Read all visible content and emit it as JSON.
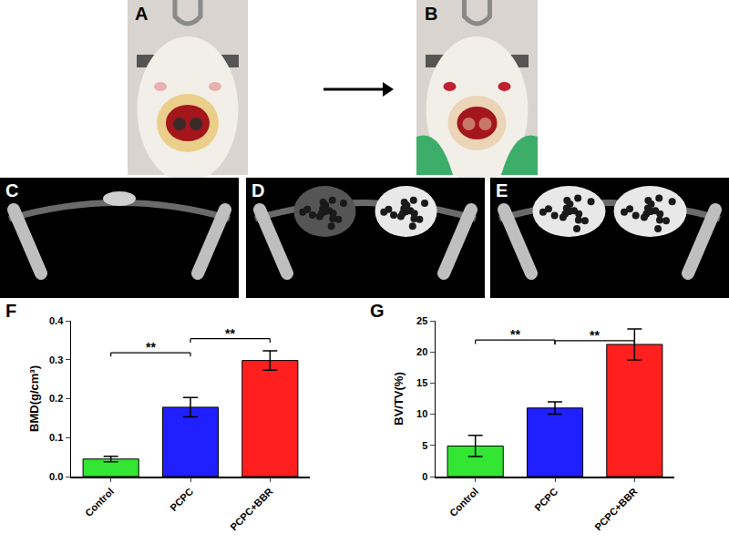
{
  "image_panels": [
    "A",
    "B",
    "C",
    "D",
    "E"
  ],
  "chart_data": [
    {
      "type": "bar",
      "panel": "F",
      "y_label": "BMD(g/cm³)",
      "categories": [
        "Control",
        "PCPC",
        "PCPC+BBR"
      ],
      "values": [
        0.045,
        0.178,
        0.298
      ],
      "errors": [
        0.007,
        0.025,
        0.025
      ],
      "colors": [
        "#33e633",
        "#1f1fff",
        "#ff1f1f"
      ],
      "ylim": [
        0,
        0.4
      ],
      "yticks": [
        {
          "value": 0,
          "label": "0.0"
        },
        0.1,
        0.2,
        0.3,
        0.4
      ],
      "significance": [
        {
          "from": "Control",
          "to": "PCPC",
          "y": 0.318,
          "text": "**"
        },
        {
          "from": "PCPC",
          "to": "PCPC+BBR",
          "y": 0.354,
          "text": "**"
        }
      ]
    },
    {
      "type": "bar",
      "panel": "G",
      "y_label": "BV/TV(%)",
      "categories": [
        "Control",
        "PCPC",
        "PCPC+BBR"
      ],
      "values": [
        4.9,
        11.0,
        21.2
      ],
      "errors": [
        1.7,
        1.0,
        2.5
      ],
      "colors": [
        "#33e633",
        "#1f1fff",
        "#ff1f1f"
      ],
      "ylim": [
        0,
        25
      ],
      "yticks": [
        0,
        5,
        10,
        15,
        20,
        25
      ],
      "significance": [
        {
          "from": "Control",
          "to": "PCPC",
          "y": 21.9,
          "text": "**"
        },
        {
          "from": "PCPC",
          "to": "PCPC+BBR",
          "y": 21.8,
          "text": "**"
        }
      ]
    }
  ]
}
